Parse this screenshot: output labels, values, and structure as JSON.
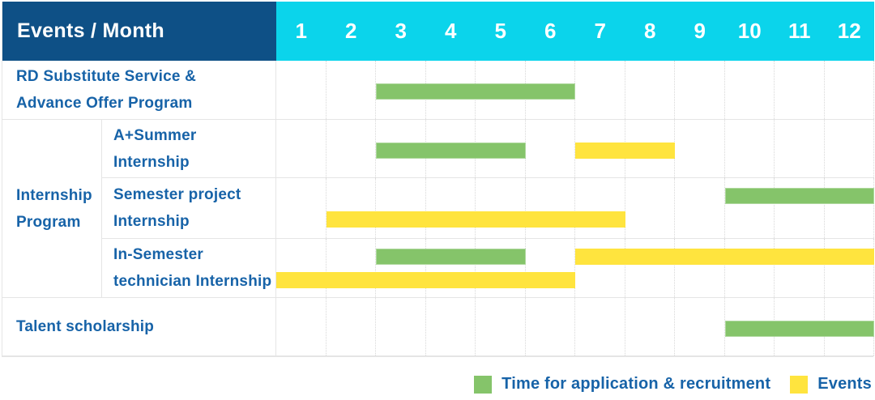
{
  "colors": {
    "header_bg": "#0E5086",
    "months_bg": "#0BD4EB",
    "green": "#85C46A",
    "yellow": "#FFE43E",
    "label_text": "#1763A8",
    "header_text": "#FFFFFF",
    "border": "#E5E5E5",
    "gridline": "#D8D8D8"
  },
  "header": {
    "title": "Events / Month",
    "months": [
      "1",
      "2",
      "3",
      "4",
      "5",
      "6",
      "7",
      "8",
      "9",
      "10",
      "11",
      "12"
    ]
  },
  "group": {
    "label": [
      "Internship",
      "Program"
    ]
  },
  "rows": [
    {
      "name": "rd-substitute-service",
      "label": [
        "RD Substitute Service &",
        "Advance Offer Program"
      ],
      "bars": [
        {
          "type": "green",
          "start_month": 3,
          "end_month": 6,
          "track": "center"
        }
      ]
    },
    {
      "name": "a-plus-summer-internship",
      "label": [
        "A+Summer",
        "Internship"
      ],
      "bars": [
        {
          "type": "green",
          "start_month": 3,
          "end_month": 5,
          "track": "center"
        },
        {
          "type": "yellow",
          "start_month": 7,
          "end_month": 8,
          "track": "center"
        }
      ]
    },
    {
      "name": "semester-project-internship",
      "label": [
        "Semester project",
        "Internship"
      ],
      "bars": [
        {
          "type": "green",
          "start_month": 10,
          "end_month": 12,
          "track": "top"
        },
        {
          "type": "yellow",
          "start_month": 2,
          "end_month": 7,
          "track": "bottom"
        }
      ]
    },
    {
      "name": "in-semester-technician-internship",
      "label": [
        "In-Semester",
        "technician Internship"
      ],
      "bars": [
        {
          "type": "green",
          "start_month": 3,
          "end_month": 5,
          "track": "top"
        },
        {
          "type": "yellow",
          "start_month": 7,
          "end_month": 12,
          "track": "top"
        },
        {
          "type": "yellow",
          "start_month": 1,
          "end_month": 6,
          "track": "bottom"
        }
      ]
    },
    {
      "name": "talent-scholarship",
      "label": [
        "Talent scholarship"
      ],
      "bars": [
        {
          "type": "green",
          "start_month": 10,
          "end_month": 12,
          "track": "center"
        }
      ]
    }
  ],
  "legend": [
    {
      "type": "green",
      "label": "Time for application & recruitment"
    },
    {
      "type": "yellow",
      "label": "Events"
    }
  ],
  "chart_data": {
    "type": "table",
    "title": "Events / Month",
    "xlabel": "Month",
    "x_range": [
      1,
      12
    ],
    "x_ticks": [
      "1",
      "2",
      "3",
      "4",
      "5",
      "6",
      "7",
      "8",
      "9",
      "10",
      "11",
      "12"
    ],
    "legend_position": "bottom-right",
    "grid": "vertical-dotted",
    "series": [
      {
        "name": "RD Substitute Service & Advance Offer Program",
        "bars": [
          {
            "category": "Time for application & recruitment",
            "months": [
              3,
              6
            ]
          }
        ]
      },
      {
        "name": "A+Summer Internship",
        "group": "Internship Program",
        "bars": [
          {
            "category": "Time for application & recruitment",
            "months": [
              3,
              5
            ]
          },
          {
            "category": "Events",
            "months": [
              7,
              8
            ]
          }
        ]
      },
      {
        "name": "Semester project Internship",
        "group": "Internship Program",
        "bars": [
          {
            "category": "Time for application & recruitment",
            "months": [
              10,
              12
            ]
          },
          {
            "category": "Events",
            "months": [
              2,
              7
            ]
          }
        ]
      },
      {
        "name": "In-Semester technician Internship",
        "group": "Internship Program",
        "bars": [
          {
            "category": "Time for application & recruitment",
            "months": [
              3,
              5
            ]
          },
          {
            "category": "Events",
            "months": [
              7,
              12
            ]
          },
          {
            "category": "Events",
            "months": [
              1,
              6
            ]
          }
        ]
      },
      {
        "name": "Talent scholarship",
        "bars": [
          {
            "category": "Time for application & recruitment",
            "months": [
              10,
              12
            ]
          }
        ]
      }
    ]
  }
}
